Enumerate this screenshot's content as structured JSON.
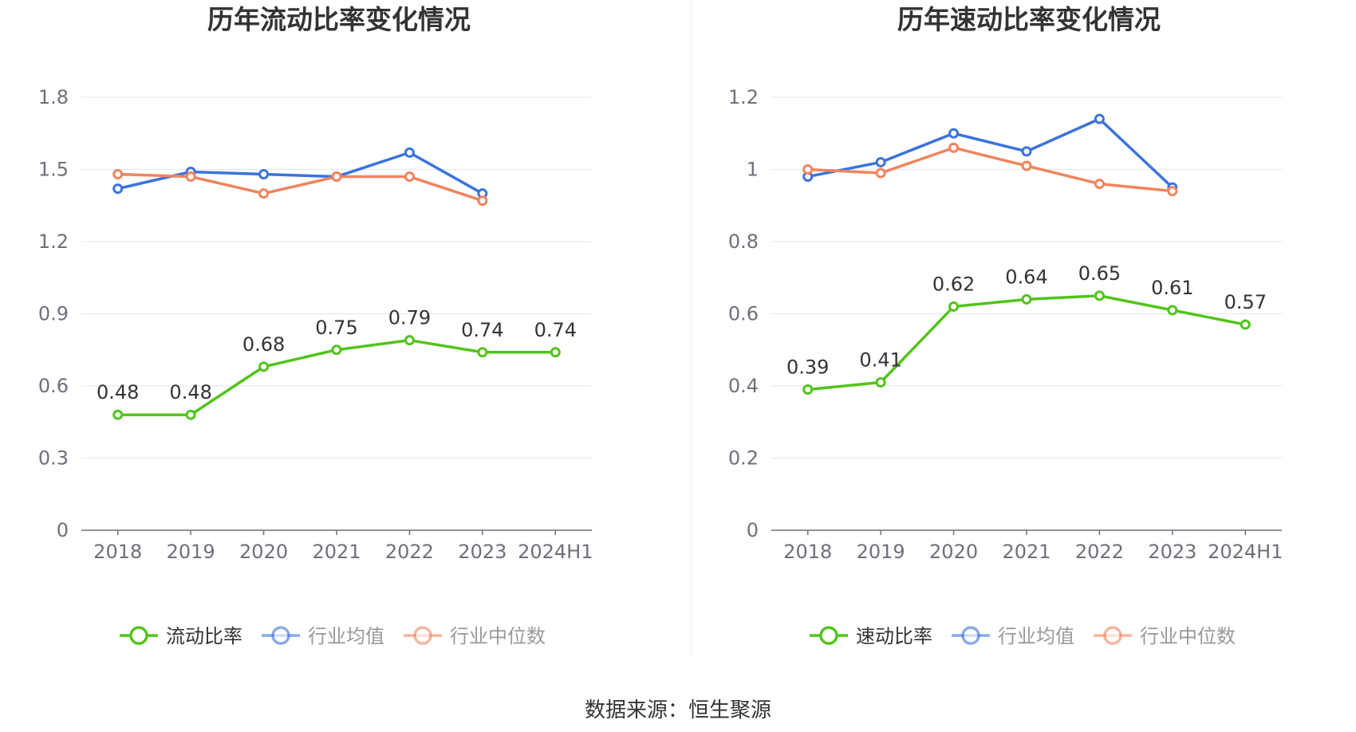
{
  "source_label": "数据来源：恒生聚源",
  "chart_data": [
    {
      "type": "line",
      "title": "历年流动比率变化情况",
      "categories": [
        "2018",
        "2019",
        "2020",
        "2021",
        "2022",
        "2023",
        "2024H1"
      ],
      "ylim": [
        0,
        1.8
      ],
      "yticks": [
        0,
        0.3,
        0.6,
        0.9,
        1.2,
        1.5,
        1.8
      ],
      "ytick_labels": [
        "0",
        "0.3",
        "0.6",
        "0.9",
        "1.2",
        "1.5",
        "1.8"
      ],
      "grid": true,
      "legend_position": "bottom",
      "series": [
        {
          "name": "流动比率",
          "color": "#52c41a",
          "values": [
            0.48,
            0.48,
            0.68,
            0.75,
            0.79,
            0.74,
            0.74
          ],
          "labels": [
            "0.48",
            "0.48",
            "0.68",
            "0.75",
            "0.79",
            "0.74",
            "0.74"
          ]
        },
        {
          "name": "行业均值",
          "color": "#3b73dc",
          "values": [
            1.42,
            1.49,
            1.48,
            1.47,
            1.57,
            1.4,
            null
          ]
        },
        {
          "name": "行业中位数",
          "color": "#f0845e",
          "values": [
            1.48,
            1.47,
            1.4,
            1.47,
            1.47,
            1.37,
            null
          ]
        }
      ]
    },
    {
      "type": "line",
      "title": "历年速动比率变化情况",
      "categories": [
        "2018",
        "2019",
        "2020",
        "2021",
        "2022",
        "2023",
        "2024H1"
      ],
      "ylim": [
        0,
        1.2
      ],
      "yticks": [
        0,
        0.2,
        0.4,
        0.6,
        0.8,
        1.0,
        1.2
      ],
      "ytick_labels": [
        "0",
        "0.2",
        "0.4",
        "0.6",
        "0.8",
        "1",
        "1.2"
      ],
      "grid": true,
      "legend_position": "bottom",
      "series": [
        {
          "name": "速动比率",
          "color": "#52c41a",
          "values": [
            0.39,
            0.41,
            0.62,
            0.64,
            0.65,
            0.61,
            0.57
          ],
          "labels": [
            "0.39",
            "0.41",
            "0.62",
            "0.64",
            "0.65",
            "0.61",
            "0.57"
          ]
        },
        {
          "name": "行业均值",
          "color": "#3b73dc",
          "values": [
            0.98,
            1.02,
            1.1,
            1.05,
            1.14,
            0.95,
            null
          ]
        },
        {
          "name": "行业中位数",
          "color": "#f0845e",
          "values": [
            1.0,
            0.99,
            1.06,
            1.01,
            0.96,
            0.94,
            null
          ]
        }
      ]
    }
  ]
}
